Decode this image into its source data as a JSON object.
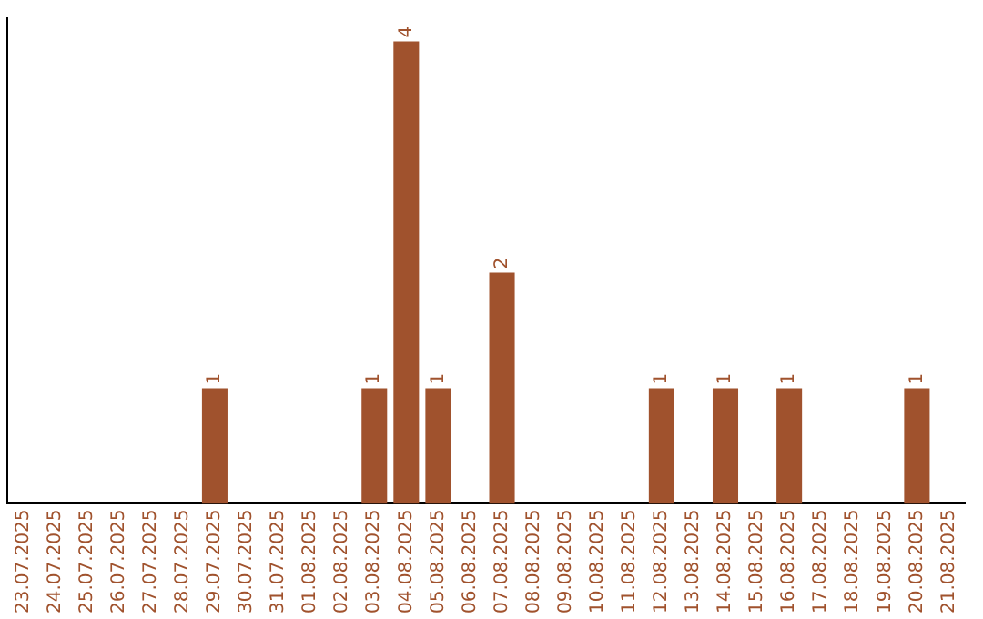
{
  "chart_data": {
    "type": "bar",
    "categories": [
      "23.07.2025",
      "24.07.2025",
      "25.07.2025",
      "26.07.2025",
      "27.07.2025",
      "28.07.2025",
      "29.07.2025",
      "30.07.2025",
      "31.07.2025",
      "01.08.2025",
      "02.08.2025",
      "03.08.2025",
      "04.08.2025",
      "05.08.2025",
      "06.08.2025",
      "07.08.2025",
      "08.08.2025",
      "09.08.2025",
      "10.08.2025",
      "11.08.2025",
      "12.08.2025",
      "13.08.2025",
      "14.08.2025",
      "15.08.2025",
      "16.08.2025",
      "17.08.2025",
      "18.08.2025",
      "19.08.2025",
      "20.08.2025",
      "21.08.2025"
    ],
    "values": [
      0,
      0,
      0,
      0,
      0,
      0,
      1,
      0,
      0,
      0,
      0,
      1,
      4,
      1,
      0,
      2,
      0,
      0,
      0,
      0,
      1,
      0,
      1,
      0,
      1,
      0,
      0,
      0,
      1,
      0
    ],
    "value_labels": [
      null,
      null,
      null,
      null,
      null,
      null,
      "1",
      null,
      null,
      null,
      null,
      "1",
      "4",
      "1",
      null,
      "2",
      null,
      null,
      null,
      null,
      "1",
      null,
      "1",
      null,
      "1",
      null,
      null,
      null,
      "1",
      null
    ],
    "color": "#a0522d",
    "ylim": [
      0,
      4.2
    ],
    "grid": false,
    "legend": false
  }
}
